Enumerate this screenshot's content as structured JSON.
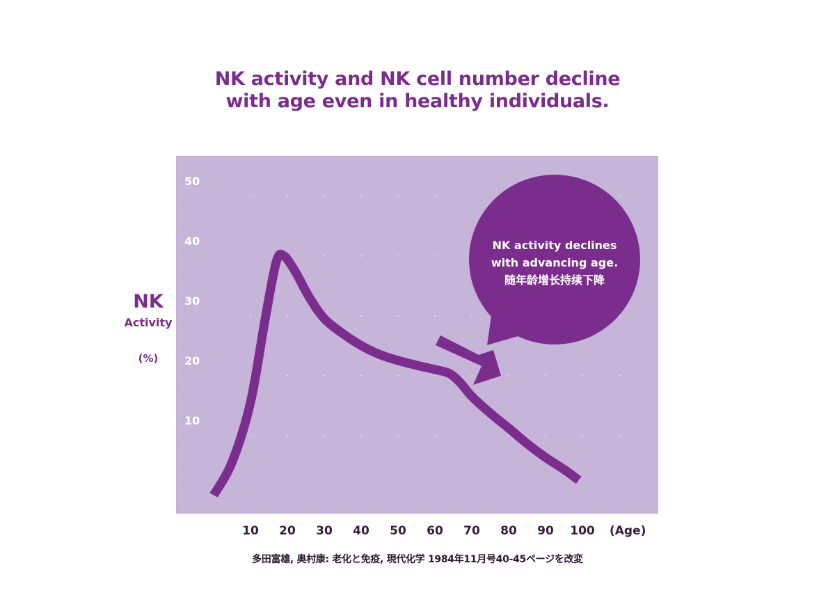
{
  "title": {
    "line1": "NK activity and NK cell number decline",
    "line2": "with age even in healthy individuals."
  },
  "y_axis": {
    "label_main": "NK",
    "label_sub": "Activity",
    "label_unit": "(%)"
  },
  "callout": {
    "line1": "NK activity declines",
    "line2": "with advancing age.",
    "line3": "随年龄增长持续下降"
  },
  "source": "多田富雄, 奥村康: 老化と免疫, 現代化学 1984年11月号40-45ページを改変",
  "colors": {
    "accent": "#7b2d8e",
    "plot_background": "#c6b5d9",
    "text_dark": "#3a1a40",
    "tick_label": "#ffffff"
  },
  "chart_data": {
    "type": "line",
    "title": "NK activity and NK cell number decline with age even in healthy individuals.",
    "xlabel": "(Age)",
    "ylabel": "NK Activity (%)",
    "x_ticks": [
      10,
      20,
      30,
      40,
      50,
      60,
      70,
      80,
      90,
      100
    ],
    "y_ticks": [
      10,
      20,
      30,
      40,
      50
    ],
    "xlim": [
      0,
      120
    ],
    "ylim": [
      -5,
      55
    ],
    "grid": "dotted",
    "legend": null,
    "series": [
      {
        "name": "NK activity",
        "x": [
          0,
          5,
          10,
          14,
          17,
          19,
          22,
          26,
          30,
          35,
          40,
          45,
          50,
          55,
          60,
          64,
          67,
          70,
          75,
          80,
          85,
          90,
          95,
          99
        ],
        "values": [
          -2.5,
          3,
          13,
          27,
          36.5,
          37.5,
          35,
          30.5,
          27,
          24.5,
          22.5,
          21,
          20,
          19.2,
          18.5,
          17.8,
          16.2,
          14,
          11.2,
          8.7,
          6.1,
          3.8,
          1.8,
          0
        ]
      }
    ],
    "annotations": [
      {
        "type": "callout",
        "text": "NK activity declines with advancing age. 随年龄增长持续下降"
      },
      {
        "type": "arrow",
        "direction": "down-right",
        "near_age": 65
      }
    ]
  }
}
